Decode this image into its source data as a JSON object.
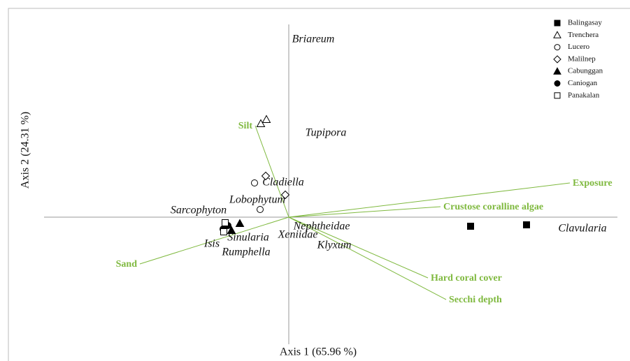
{
  "chart_data": {
    "type": "biplot",
    "xlabel": "Axis 1 (65.96 %)",
    "ylabel": "Axis 2 (24.31 %)",
    "xlim": [
      -3.5,
      4.7
    ],
    "ylim": [
      -1.94,
      2.76
    ],
    "vector_color": "#7fb93f",
    "series": [
      {
        "name": "Balingasay",
        "marker": "square",
        "filled": true,
        "x": [
          2.6,
          3.4
        ],
        "y": [
          -0.13,
          -0.11
        ]
      },
      {
        "name": "Trenchera",
        "marker": "triangle",
        "filled": false,
        "x": [
          -0.4,
          -0.32
        ],
        "y": [
          1.34,
          1.4
        ]
      },
      {
        "name": "Lucero",
        "marker": "circle",
        "filled": false,
        "x": [
          -0.49,
          -0.41
        ],
        "y": [
          0.49,
          0.11
        ]
      },
      {
        "name": "Malilnep",
        "marker": "diamond",
        "filled": false,
        "x": [
          -0.33,
          -0.05
        ],
        "y": [
          0.59,
          0.32
        ]
      },
      {
        "name": "Cabunggan",
        "marker": "triangle",
        "filled": true,
        "x": [
          -0.7,
          -0.82
        ],
        "y": [
          -0.09,
          -0.19
        ]
      },
      {
        "name": "Caniogan",
        "marker": "circle",
        "filled": true,
        "x": [
          -0.87,
          -0.94
        ],
        "y": [
          -0.12,
          -0.17
        ]
      },
      {
        "name": "Panakalan",
        "marker": "square",
        "filled": false,
        "x": [
          -0.91,
          -0.93
        ],
        "y": [
          -0.08,
          -0.21
        ]
      }
    ],
    "species": {
      "labels": [
        "Briareum",
        "Tupipora",
        "Cladiella",
        "Lobophytum",
        "Sarcophyton",
        "Nephtheidae",
        "Xeniidae",
        "Klyxum",
        "Sinularia",
        "Isis",
        "Rumphella",
        "Clavularia"
      ],
      "x": [
        0.35,
        0.53,
        -0.08,
        -0.45,
        -1.29,
        0.47,
        0.13,
        0.65,
        -0.58,
        -1.1,
        -0.61,
        4.2
      ],
      "y": [
        2.54,
        1.2,
        0.49,
        0.24,
        0.09,
        -0.14,
        -0.26,
        -0.41,
        -0.3,
        -0.39,
        -0.51,
        -0.17
      ]
    },
    "vectors": {
      "labels": [
        "Silt",
        "Exposure",
        "Crustose coralline algae",
        "Sand",
        "Hard coral cover",
        "Secchi depth"
      ],
      "x": [
        -0.48,
        4.02,
        2.17,
        -2.13,
        1.99,
        2.25
      ],
      "y": [
        1.31,
        0.49,
        0.15,
        -0.67,
        -0.87,
        -1.18
      ]
    }
  }
}
